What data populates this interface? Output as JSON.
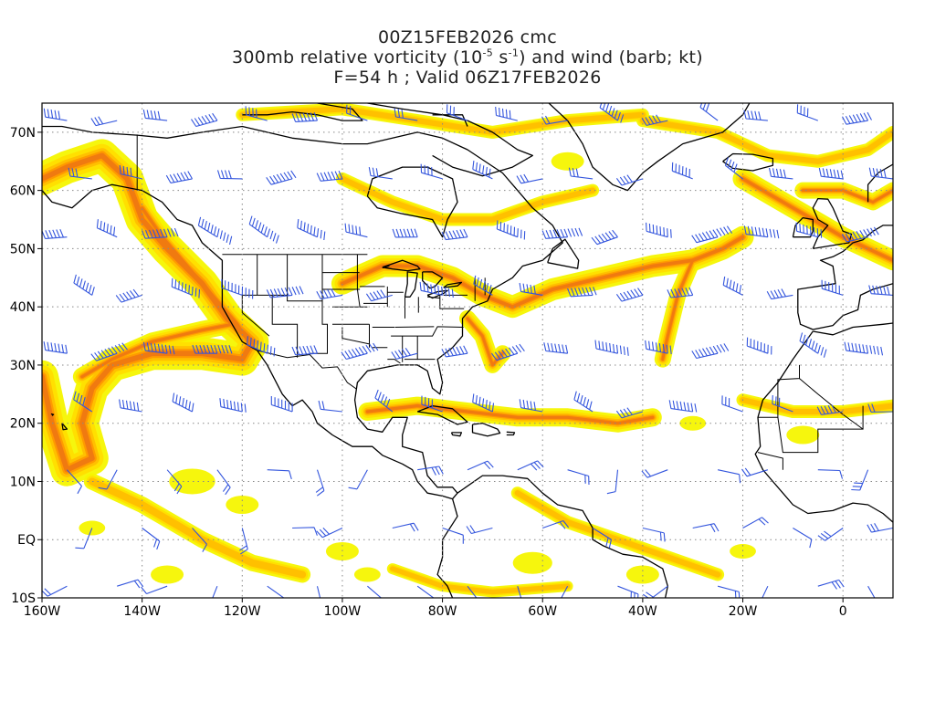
{
  "title": {
    "line1": "00Z15FEB2026 cmc",
    "line2_pre": "300mb relative vorticity (10",
    "line2_exp1": "-5",
    "line2_mid": " s",
    "line2_exp2": "-1",
    "line2_post": ") and wind (barb; kt)",
    "line3": "F=54 h ; Valid 06Z17FEB2026"
  },
  "axes": {
    "lon_ticks": [
      "160W",
      "140W",
      "120W",
      "100W",
      "80W",
      "60W",
      "40W",
      "20W",
      "0"
    ],
    "lat_ticks": [
      "70N",
      "60N",
      "50N",
      "40N",
      "30N",
      "20N",
      "10N",
      "EQ",
      "10S"
    ],
    "lon_range": [
      -160,
      10
    ],
    "lat_range": [
      -10,
      75
    ],
    "grid": "dotted"
  },
  "colors": {
    "shade_light": "#f5f500",
    "shade_yellow": "#ffe000",
    "shade_orange1": "#ffc000",
    "shade_orange2": "#ff9a00",
    "shade_orange3": "#f07a10",
    "shade_red": "#e05020",
    "barb": "#3355dd",
    "coast": "#000000",
    "grid": "#888888"
  }
}
